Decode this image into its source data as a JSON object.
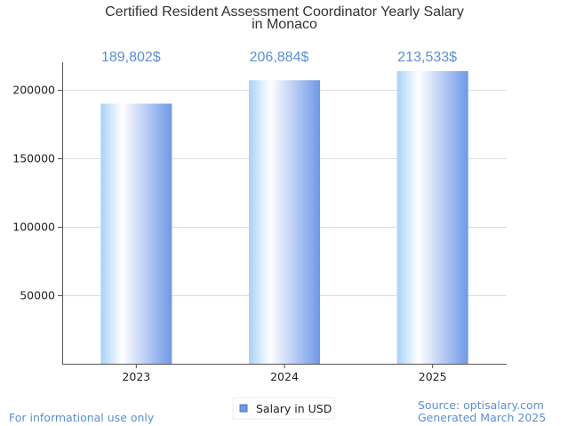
{
  "chart_data": {
    "type": "bar",
    "title_lines": [
      "Certified Resident Assessment Coordinator Yearly Salary",
      "in Monaco"
    ],
    "categories": [
      "2023",
      "2024",
      "2025"
    ],
    "series": [
      {
        "name": "Salary in USD",
        "values": [
          189802,
          206884,
          213533
        ],
        "labels": [
          "189,802$",
          "206,884$",
          "213,533$"
        ]
      }
    ],
    "yticks": [
      "50000",
      "100000",
      "150000",
      "200000"
    ],
    "ytick_values": [
      50000,
      100000,
      150000,
      200000
    ],
    "ylim": [
      0,
      220000
    ],
    "grid": true,
    "legend_position": "bottom-center",
    "colors": {
      "bar_left": "#a8d2f8",
      "bar_mid": "#ffffff",
      "bar_right": "#6e98e8",
      "data_label": "#5b8fd9",
      "grid": "#dddddd",
      "axis": "#555555"
    }
  },
  "footer": {
    "left": "For informational use only",
    "right_line1": "Source: optisalary.com",
    "right_line2": "Generated March 2025"
  }
}
